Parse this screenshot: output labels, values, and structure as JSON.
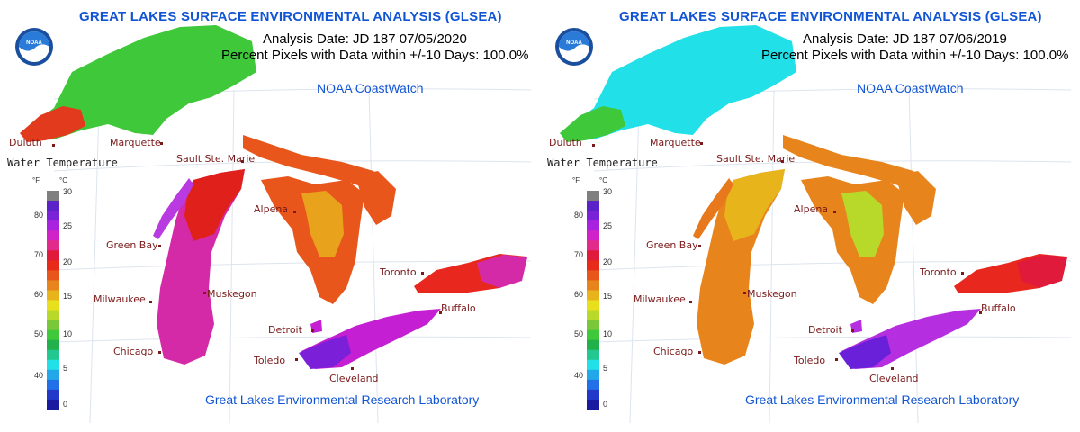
{
  "panels": [
    {
      "title": "GREAT LAKES SURFACE ENVIRONMENTAL ANALYSIS (GLSEA)",
      "analysis_date": "Analysis Date:  JD 187 07/05/2020",
      "percent": "Percent Pixels with Data within +/-10 Days: 100.0%",
      "coastwatch": "NOAA CoastWatch",
      "lab": "Great Lakes Environmental Research Laboratory",
      "legend_title": "Water Temperature",
      "colors": {
        "superior": "#3ec83a",
        "superior_w": "#e23a1c",
        "michigan": "#d42aa8",
        "michigan_n": "#e0201a",
        "huron": "#e8561c",
        "huron_c": "#e8a21c",
        "erie": "#c41fd2",
        "erie_w": "#7c1fd8",
        "ontario": "#e8281e",
        "ontario_e": "#d42aa8",
        "green_bay": "#b83ae0"
      }
    },
    {
      "title": "GREAT LAKES SURFACE ENVIRONMENTAL ANALYSIS (GLSEA)",
      "analysis_date": "Analysis Date:  JD 187 07/06/2019",
      "percent": "Percent Pixels with Data within +/-10 Days: 100.0%",
      "coastwatch": "NOAA CoastWatch",
      "lab": "Great Lakes Environmental Research Laboratory",
      "legend_title": "Water Temperature",
      "colors": {
        "superior": "#22e0e8",
        "superior_w": "#3ec83a",
        "michigan": "#e8841c",
        "michigan_n": "#e8b41c",
        "huron": "#e8841c",
        "huron_c": "#b8d82a",
        "erie": "#b52ee0",
        "erie_w": "#6a1fd8",
        "ontario": "#e8281e",
        "ontario_e": "#e01a3a",
        "green_bay": "#e8781c"
      }
    }
  ],
  "cities": [
    "Duluth",
    "Marquette",
    "Sault Ste. Marie",
    "Green Bay",
    "Alpena",
    "Milwaukee",
    "Muskegon",
    "Chicago",
    "Detroit",
    "Toledo",
    "Cleveland",
    "Toronto",
    "Buffalo"
  ],
  "legend": {
    "unit_f": "°F",
    "unit_c": "°C",
    "f_ticks": [
      "80",
      "70",
      "60",
      "50",
      "40"
    ],
    "c_ticks": [
      "30",
      "25",
      "20",
      "15",
      "10",
      "5",
      "0"
    ],
    "scale_colors": [
      "#7f7f7f",
      "#5a22c8",
      "#7a22d8",
      "#a822e0",
      "#d022c8",
      "#e22a8a",
      "#e01a3a",
      "#e82a1a",
      "#e8561c",
      "#e8841c",
      "#e8b41c",
      "#e8e01c",
      "#b8d82a",
      "#7ac83a",
      "#3ec83a",
      "#22b04a",
      "#22c890",
      "#22e0e8",
      "#22a8e8",
      "#2270e8",
      "#2238c8",
      "#1a1aa0"
    ]
  }
}
